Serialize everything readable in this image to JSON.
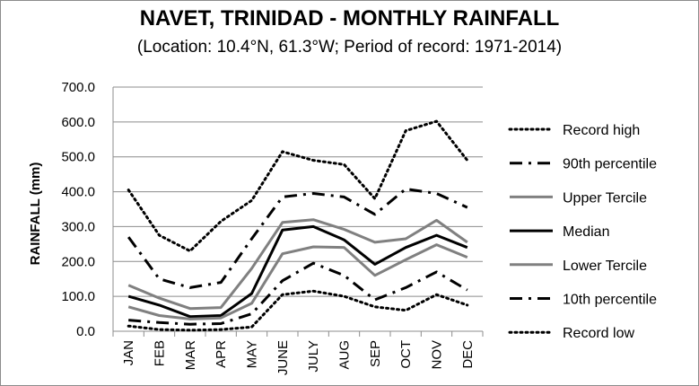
{
  "chart_data": {
    "type": "line",
    "title": "NAVET, TRINIDAD - MONTHLY RAINFALL",
    "subtitle": "(Location: 10.4°N, 61.3°W; Period of record: 1971-2014)",
    "ylabel": "RAINFALL (mm)",
    "xlabel": "",
    "ylim": [
      0,
      700
    ],
    "yticks": [
      "0.0",
      "100.0",
      "200.0",
      "300.0",
      "400.0",
      "500.0",
      "600.0",
      "700.0"
    ],
    "grid": true,
    "legend_position": "right",
    "categories": [
      "JAN",
      "FEB",
      "MAR",
      "APR",
      "MAY",
      "JUNE",
      "JULY",
      "AUG",
      "SEP",
      "OCT",
      "NOV",
      "DEC"
    ],
    "series": [
      {
        "name": "Record high",
        "style": "dotted",
        "color": "#000000",
        "values": [
          405,
          275,
          230,
          315,
          375,
          515,
          490,
          478,
          380,
          575,
          602,
          490
        ]
      },
      {
        "name": "90th percentile",
        "style": "dashdot",
        "color": "#000000",
        "values": [
          270,
          150,
          125,
          140,
          265,
          385,
          395,
          385,
          335,
          408,
          395,
          355
        ]
      },
      {
        "name": "Upper Tercile",
        "style": "solid",
        "color": "#808080",
        "values": [
          132,
          95,
          65,
          68,
          180,
          312,
          320,
          292,
          255,
          265,
          318,
          255
        ]
      },
      {
        "name": "Median",
        "style": "solid",
        "color": "#000000",
        "values": [
          100,
          75,
          42,
          45,
          108,
          290,
          300,
          262,
          192,
          240,
          275,
          240
        ]
      },
      {
        "name": "Lower Tercile",
        "style": "solid",
        "color": "#808080",
        "values": [
          70,
          45,
          35,
          38,
          80,
          222,
          242,
          240,
          160,
          205,
          248,
          212
        ]
      },
      {
        "name": "10th percentile",
        "style": "dashdot",
        "color": "#000000",
        "values": [
          32,
          25,
          20,
          22,
          50,
          145,
          195,
          160,
          90,
          125,
          170,
          118
        ]
      },
      {
        "name": "Record low",
        "style": "dotted",
        "color": "#000000",
        "values": [
          15,
          5,
          3,
          5,
          12,
          105,
          115,
          100,
          70,
          60,
          105,
          75
        ]
      }
    ]
  }
}
